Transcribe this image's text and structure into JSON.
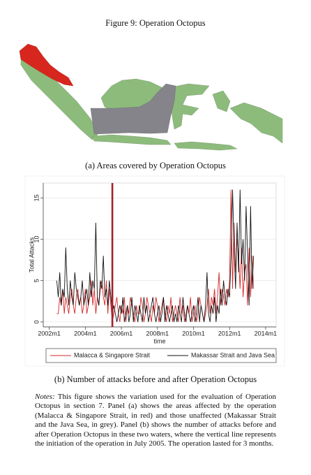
{
  "figure": {
    "title": "Figure 9: Operation Octopus",
    "map_caption": "(a) Areas covered by Operation Octopus",
    "chart_caption": "(b) Number of attacks before and after Operation Octopus"
  },
  "chart_data": {
    "type": "line",
    "y_label": "Total Attacks",
    "x_label": "time",
    "xlim": [
      "2001m9",
      "2014m8"
    ],
    "xticks": [
      "2002m1",
      "2004m1",
      "2006m1",
      "2008m1",
      "2010m1",
      "2012m1",
      "2014m1"
    ],
    "ylim": [
      -0.6,
      16.8
    ],
    "yticks": [
      0,
      5,
      10,
      15
    ],
    "grid": true,
    "vline": {
      "x": "2005m7",
      "color": "#a3202c"
    },
    "x": [
      "2002m6",
      "2002m7",
      "2002m8",
      "2002m9",
      "2002m10",
      "2002m11",
      "2002m12",
      "2003m1",
      "2003m2",
      "2003m3",
      "2003m4",
      "2003m5",
      "2003m6",
      "2003m7",
      "2003m8",
      "2003m9",
      "2003m10",
      "2003m11",
      "2003m12",
      "2004m1",
      "2004m2",
      "2004m3",
      "2004m4",
      "2004m5",
      "2004m6",
      "2004m7",
      "2004m8",
      "2004m9",
      "2004m10",
      "2004m11",
      "2004m12",
      "2005m1",
      "2005m2",
      "2005m3",
      "2005m4",
      "2005m5",
      "2005m6",
      "2005m7",
      "2005m8",
      "2005m9",
      "2005m10",
      "2005m11",
      "2005m12",
      "2006m1",
      "2006m2",
      "2006m3",
      "2006m4",
      "2006m5",
      "2006m6",
      "2006m7",
      "2006m8",
      "2006m9",
      "2006m10",
      "2006m11",
      "2006m12",
      "2007m1",
      "2007m2",
      "2007m3",
      "2007m4",
      "2007m5",
      "2007m6",
      "2007m7",
      "2007m8",
      "2007m9",
      "2007m10",
      "2007m11",
      "2007m12",
      "2008m1",
      "2008m2",
      "2008m3",
      "2008m4",
      "2008m5",
      "2008m6",
      "2008m7",
      "2008m8",
      "2008m9",
      "2008m10",
      "2008m11",
      "2008m12",
      "2009m1",
      "2009m2",
      "2009m3",
      "2009m4",
      "2009m5",
      "2009m6",
      "2009m7",
      "2009m8",
      "2009m9",
      "2009m10",
      "2009m11",
      "2009m12",
      "2010m1",
      "2010m2",
      "2010m3",
      "2010m4",
      "2010m5",
      "2010m6",
      "2010m7",
      "2010m8",
      "2010m9",
      "2010m10",
      "2010m11",
      "2010m12",
      "2011m1",
      "2011m2",
      "2011m3",
      "2011m4",
      "2011m5",
      "2011m6",
      "2011m7",
      "2011m8",
      "2011m9",
      "2011m10",
      "2011m11",
      "2011m12",
      "2012m1",
      "2012m2",
      "2012m3",
      "2012m4",
      "2012m5",
      "2012m6",
      "2012m7",
      "2012m8",
      "2012m9",
      "2012m10",
      "2012m11",
      "2012m12",
      "2013m1",
      "2013m2",
      "2013m3",
      "2013m4",
      "2013m5"
    ],
    "series": [
      {
        "name": "Malacca & Singapore Strait",
        "color": "#d62728",
        "values": [
          1,
          1,
          3,
          2,
          4,
          1,
          3,
          2,
          1,
          3,
          4,
          2,
          1,
          3,
          4,
          2,
          3,
          1,
          2,
          4,
          1,
          2,
          3,
          5,
          2,
          4,
          1,
          3,
          2,
          4,
          5,
          3,
          2,
          5,
          1,
          4,
          2,
          0,
          1,
          2,
          3,
          1,
          0,
          2,
          1,
          3,
          0,
          2,
          1,
          3,
          2,
          1,
          0,
          2,
          1,
          1,
          3,
          2,
          0,
          1,
          3,
          2,
          1,
          0,
          2,
          1,
          3,
          2,
          0,
          1,
          2,
          3,
          1,
          0,
          2,
          1,
          3,
          0,
          1,
          2,
          1,
          0,
          3,
          1,
          2,
          0,
          1,
          2,
          1,
          3,
          0,
          1,
          2,
          0,
          1,
          3,
          2,
          1,
          0,
          1,
          2,
          4,
          1,
          3,
          2,
          4,
          1,
          3,
          6,
          2,
          4,
          3,
          2,
          4,
          3,
          5,
          16,
          4,
          12,
          6,
          10,
          8,
          4,
          9,
          3,
          6,
          7,
          2,
          9,
          3,
          8,
          4
        ]
      },
      {
        "name": "Makassar Strait and Java Sea",
        "color": "#111111",
        "values": [
          5,
          3,
          6,
          2,
          4,
          3,
          9,
          4,
          2,
          5,
          3,
          2,
          6,
          4,
          3,
          2,
          3,
          5,
          2,
          3,
          4,
          2,
          6,
          3,
          5,
          4,
          12,
          3,
          2,
          5,
          4,
          8,
          3,
          4,
          2,
          5,
          3,
          1,
          2,
          1,
          0,
          1,
          2,
          1,
          3,
          0,
          1,
          2,
          0,
          1,
          3,
          0,
          2,
          1,
          0,
          2,
          1,
          0,
          3,
          1,
          2,
          0,
          1,
          2,
          3,
          1,
          0,
          1,
          2,
          0,
          1,
          3,
          0,
          2,
          1,
          0,
          1,
          2,
          0,
          1,
          0,
          2,
          1,
          0,
          3,
          1,
          0,
          2,
          1,
          0,
          1,
          2,
          0,
          1,
          3,
          0,
          2,
          1,
          0,
          2,
          6,
          1,
          0,
          2,
          1,
          3,
          0,
          2,
          1,
          4,
          2,
          5,
          3,
          2,
          4,
          3,
          8,
          16,
          9,
          4,
          12,
          6,
          16,
          7,
          10,
          5,
          14,
          8,
          2,
          14,
          4,
          8
        ]
      }
    ]
  },
  "notes": {
    "label": "Notes:",
    "text": "This figure shows the variation used for the evaluation of Operation Octopus in section 7. Panel (a) shows the areas affected by the operation (Malacca & Singapore Strait, in red) and those unaffected (Makassar Strait and the Java Sea, in grey). Panel (b) shows the number of attacks before and after Operation Octopus in these two waters, where the vertical line represents the initiation of the operation in July 2005. The operation lasted for 3 months."
  }
}
